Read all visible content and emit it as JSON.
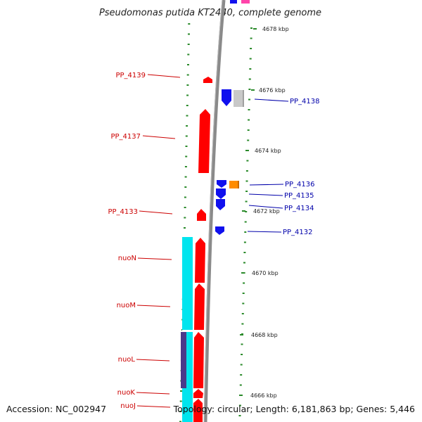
{
  "title": "Pseudomonas putida KT2440, complete genome",
  "footer": {
    "accession": "Accession: NC_002947",
    "topology": "Topology: circular; Length: 6,181,863 bp; Genes: 5,446"
  },
  "kbp_labels": [
    "4678 kbp",
    "4676 kbp",
    "4674 kbp",
    "4672 kbp",
    "4670 kbp",
    "4668 kbp",
    "4666 kbp"
  ],
  "left_labels": [
    "PP_4139",
    "PP_4137",
    "PP_4133",
    "nuoN",
    "nuoM",
    "nuoL",
    "nuoK",
    "nuoJ"
  ],
  "right_labels": [
    "PP_4138",
    "PP_4136",
    "PP_4135",
    "PP_4134",
    "PP_4132"
  ],
  "colors": {
    "reverse_gene": "#ff0000",
    "forward_gene": "#1010ee",
    "backbone": "#8a8a8a",
    "tick": "#2a8a2a",
    "complex_cyan": "#00e5ee",
    "complex_dark": "#4a3a8a",
    "orange_gene": "#ff8c00",
    "grey_gene": "#c8c8c8",
    "magenta_gene": "#ff44aa"
  }
}
